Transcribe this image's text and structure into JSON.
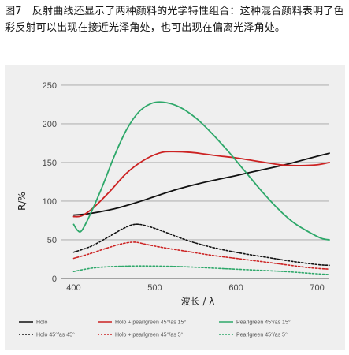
{
  "caption": "图7　反射曲线还显示了两种颜料的光学特性组合：这种混合颜料表明了色彩反射可以出现在接近光泽角处，也可出现在偏离光泽角处。",
  "chart_data": {
    "type": "line",
    "xlabel": "波长 / λ",
    "ylabel": "R/%",
    "xlim": [
      385,
      715
    ],
    "ylim": [
      0,
      255
    ],
    "xticks": [
      400,
      500,
      600,
      700
    ],
    "yticks": [
      0,
      50,
      100,
      150,
      200,
      250
    ],
    "grid": "horizontal",
    "legend_position": "bottom",
    "series": [
      {
        "name": "Holo",
        "color": "#111111",
        "dash": "solid",
        "x": [
          400,
          420,
          450,
          480,
          500,
          530,
          560,
          600,
          630,
          660,
          700,
          715
        ],
        "y": [
          82,
          84,
          90,
          99,
          106,
          116,
          124,
          133,
          140,
          147,
          158,
          162
        ]
      },
      {
        "name": "Holo + pearlgreen 45°/as 15°",
        "color": "#cc2222",
        "dash": "solid",
        "x": [
          400,
          410,
          425,
          445,
          465,
          485,
          505,
          520,
          545,
          575,
          600,
          630,
          655,
          675,
          700,
          715
        ],
        "y": [
          80,
          81,
          92,
          113,
          136,
          152,
          162,
          164,
          163,
          159,
          156,
          151,
          147,
          146,
          147,
          150
        ]
      },
      {
        "name": "Pearlgreen 45°/as 15°",
        "color": "#2ea86a",
        "dash": "solid",
        "x": [
          400,
          405,
          410,
          420,
          435,
          450,
          465,
          480,
          495,
          510,
          530,
          550,
          570,
          590,
          610,
          630,
          650,
          670,
          690,
          705,
          715
        ],
        "y": [
          70,
          62,
          62,
          82,
          118,
          158,
          192,
          215,
          226,
          228,
          222,
          208,
          188,
          165,
          140,
          115,
          92,
          73,
          60,
          52,
          50
        ]
      },
      {
        "name": "Holo 45°/as 45°",
        "color": "#111111",
        "dash": "dotted",
        "x": [
          400,
          420,
          440,
          460,
          475,
          490,
          510,
          530,
          550,
          580,
          610,
          640,
          670,
          700,
          715
        ],
        "y": [
          34,
          41,
          52,
          64,
          70,
          68,
          61,
          53,
          46,
          38,
          32,
          27,
          22,
          18,
          17
        ]
      },
      {
        "name": "Holo + pearlgreen 45°/as 5°",
        "color": "#cc2222",
        "dash": "dotted",
        "x": [
          400,
          420,
          440,
          460,
          475,
          490,
          510,
          540,
          570,
          600,
          630,
          660,
          690,
          715
        ],
        "y": [
          26,
          32,
          39,
          45,
          47,
          44,
          40,
          35,
          30,
          26,
          22,
          18,
          14,
          12
        ]
      },
      {
        "name": "Pearlgreen 45°/as 5°",
        "color": "#2ea86a",
        "dash": "dotted",
        "x": [
          400,
          420,
          440,
          470,
          500,
          540,
          580,
          620,
          660,
          700,
          715
        ],
        "y": [
          9,
          13,
          15,
          16,
          16,
          15,
          13,
          11,
          9,
          6,
          5
        ]
      }
    ]
  }
}
